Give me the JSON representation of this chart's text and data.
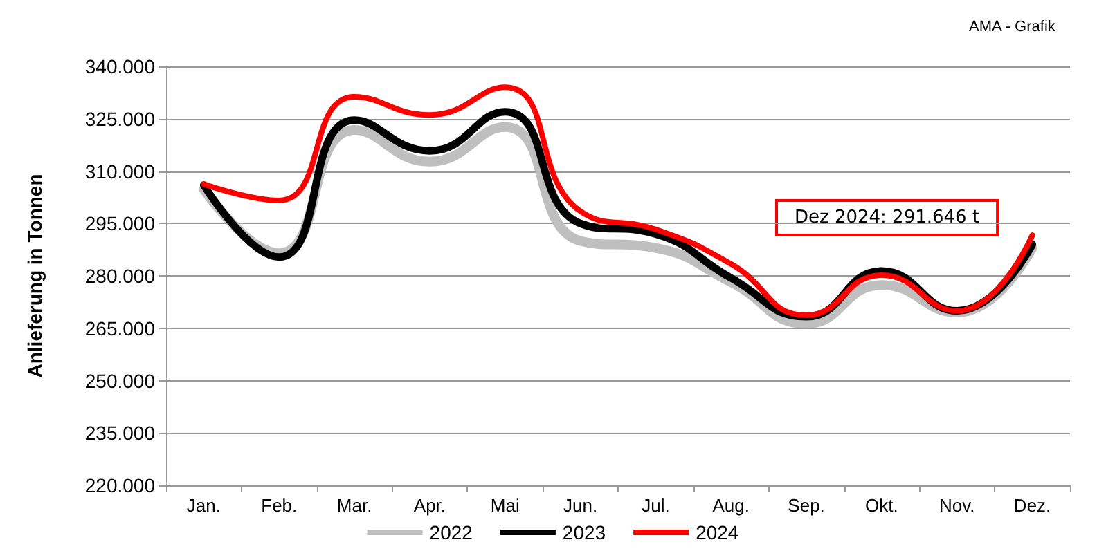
{
  "chart_data": {
    "type": "line",
    "ylabel": "Anlieferung in Tonnen",
    "categories": [
      "Jan.",
      "Feb.",
      "Mar.",
      "Apr.",
      "Mai",
      "Jun.",
      "Jul.",
      "Aug.",
      "Sep.",
      "Okt.",
      "Nov.",
      "Dez."
    ],
    "series": [
      {
        "name": "2022",
        "color": "#bfbfbf",
        "values": [
          304800,
          286500,
          321800,
          312700,
          322600,
          290000,
          288000,
          278200,
          266300,
          277400,
          269500,
          288000
        ]
      },
      {
        "name": "2023",
        "color": "#000000",
        "values": [
          306000,
          285400,
          324600,
          315800,
          327000,
          295000,
          292000,
          279400,
          268300,
          281400,
          270000,
          289000
        ]
      },
      {
        "name": "2024",
        "color": "#ff0000",
        "values": [
          306300,
          301600,
          331300,
          326100,
          334000,
          298500,
          293300,
          283400,
          268700,
          280200,
          270000,
          291646
        ]
      }
    ],
    "ylim": [
      220000,
      340000
    ],
    "yticks": [
      {
        "value": 220000,
        "label": "220.000"
      },
      {
        "value": 235000,
        "label": "235.000"
      },
      {
        "value": 250000,
        "label": "250.000"
      },
      {
        "value": 265000,
        "label": "265.000"
      },
      {
        "value": 280000,
        "label": "280.000"
      },
      {
        "value": 295000,
        "label": "295.000"
      },
      {
        "value": 310000,
        "label": "310.000"
      },
      {
        "value": 325000,
        "label": "325.000"
      },
      {
        "value": 340000,
        "label": "340.000"
      }
    ],
    "grid": "y",
    "legend": "bottom",
    "marker": "none",
    "line_style": "solid",
    "annotations": [
      "Dez 2024: 291.646 t",
      "AMA - Grafik"
    ]
  }
}
